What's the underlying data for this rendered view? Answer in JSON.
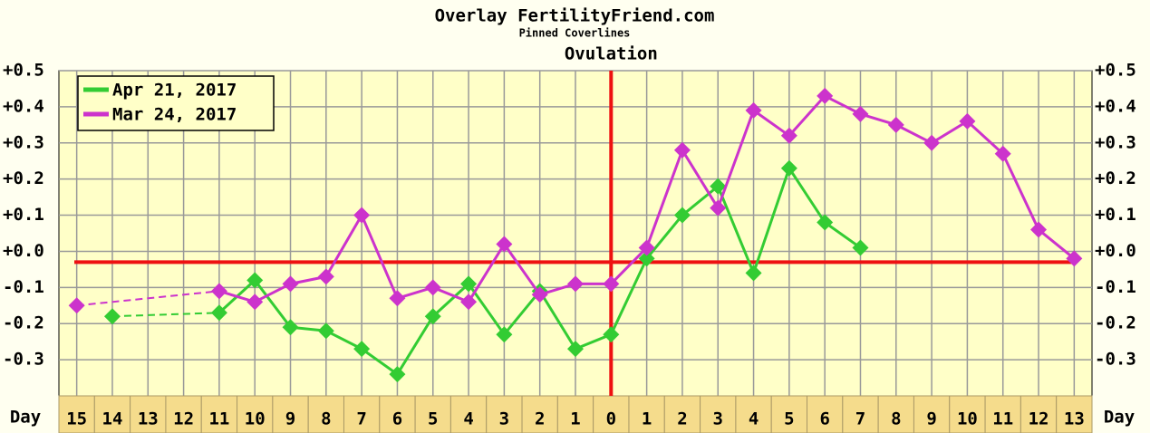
{
  "chart_data": {
    "type": "line",
    "title": "Overlay FertilityFriend.com",
    "subtitle": "Pinned Coverlines",
    "x_label": "Day",
    "ovulation": {
      "label": "Ovulation",
      "x": 0
    },
    "coverline": -0.03,
    "x": [
      -15,
      -14,
      -13,
      -12,
      -11,
      -10,
      -9,
      -8,
      -7,
      -6,
      -5,
      -4,
      -3,
      -2,
      -1,
      0,
      1,
      2,
      3,
      4,
      5,
      6,
      7,
      8,
      9,
      10,
      11,
      12,
      13
    ],
    "xlim": [
      -15.5,
      13.5
    ],
    "xticks": [
      {
        "value": -15,
        "label": "15"
      },
      {
        "value": -14,
        "label": "14"
      },
      {
        "value": -13,
        "label": "13"
      },
      {
        "value": -12,
        "label": "12"
      },
      {
        "value": -11,
        "label": "11"
      },
      {
        "value": -10,
        "label": "10"
      },
      {
        "value": -9,
        "label": "9"
      },
      {
        "value": -8,
        "label": "8"
      },
      {
        "value": -7,
        "label": "7"
      },
      {
        "value": -6,
        "label": "6"
      },
      {
        "value": -5,
        "label": "5"
      },
      {
        "value": -4,
        "label": "4"
      },
      {
        "value": -3,
        "label": "3"
      },
      {
        "value": -2,
        "label": "2"
      },
      {
        "value": -1,
        "label": "1"
      },
      0,
      1,
      2,
      3,
      4,
      5,
      6,
      7,
      8,
      9,
      10,
      11,
      12,
      13
    ],
    "ylim": [
      -0.4,
      0.5
    ],
    "yticks": [
      {
        "value": 0.5,
        "label": "+0.5"
      },
      {
        "value": 0.4,
        "label": "+0.4"
      },
      {
        "value": 0.3,
        "label": "+0.3"
      },
      {
        "value": 0.2,
        "label": "+0.2"
      },
      {
        "value": 0.1,
        "label": "+0.1"
      },
      {
        "value": 0,
        "label": "+0.0"
      },
      {
        "value": -0.1,
        "label": "-0.1"
      },
      {
        "value": -0.2,
        "label": "-0.2"
      },
      {
        "value": -0.3,
        "label": "-0.3"
      }
    ],
    "grid": true,
    "legend": "top-left",
    "series": [
      {
        "name": "Apr 21, 2017",
        "color": "#33cc33",
        "values": [
          null,
          -0.18,
          null,
          null,
          -0.17,
          -0.08,
          -0.21,
          -0.22,
          -0.27,
          -0.34,
          -0.18,
          -0.09,
          -0.23,
          -0.11,
          -0.27,
          -0.23,
          -0.02,
          0.1,
          0.18,
          -0.06,
          0.23,
          0.08,
          0.01,
          null,
          null,
          null,
          null,
          null,
          null
        ]
      },
      {
        "name": "Mar 24, 2017",
        "color": "#cc33cc",
        "values": [
          -0.15,
          null,
          null,
          null,
          -0.11,
          -0.14,
          -0.09,
          -0.07,
          0.1,
          -0.13,
          -0.1,
          -0.14,
          0.02,
          -0.12,
          -0.09,
          -0.09,
          0.01,
          0.28,
          0.12,
          0.39,
          0.32,
          0.43,
          0.38,
          0.35,
          0.3,
          0.36,
          0.27,
          0.06,
          -0.02
        ]
      }
    ]
  }
}
